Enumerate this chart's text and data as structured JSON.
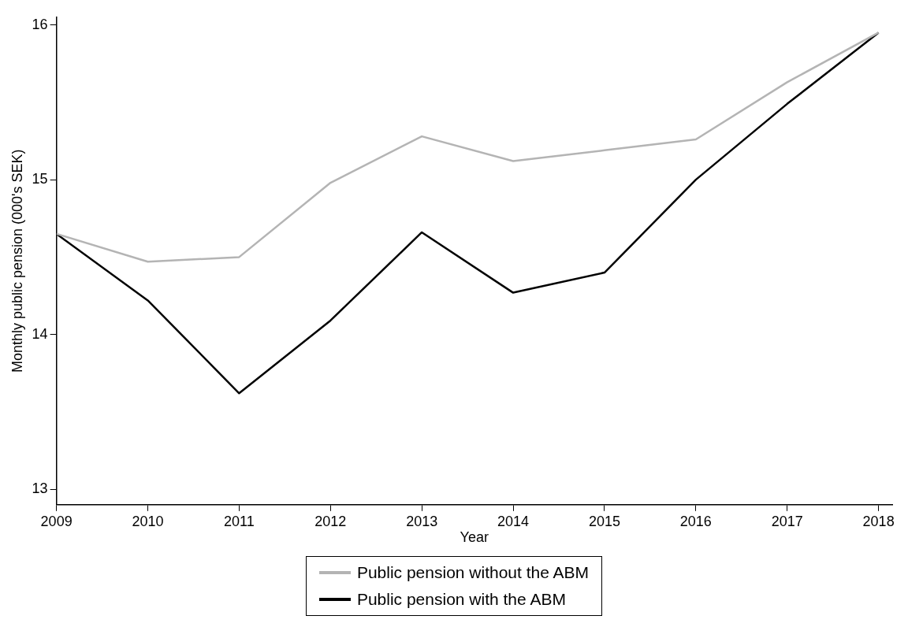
{
  "chart_data": {
    "type": "line",
    "xlabel": "Year",
    "ylabel": "Monthly public pension (000's SEK)",
    "x": [
      2009,
      2010,
      2011,
      2012,
      2013,
      2014,
      2015,
      2016,
      2017,
      2018
    ],
    "series": [
      {
        "name": "Public pension without the ABM",
        "color": "#b4b4b4",
        "values": [
          14.65,
          14.47,
          14.5,
          14.98,
          15.28,
          15.12,
          15.19,
          15.26,
          15.63,
          15.95
        ]
      },
      {
        "name": "Public pension with the ABM",
        "color": "#000000",
        "values": [
          14.65,
          14.22,
          13.62,
          14.09,
          14.66,
          14.27,
          14.4,
          15.0,
          15.49,
          15.95
        ]
      }
    ],
    "xlim": [
      2009,
      2018.15
    ],
    "xticks": [
      2009,
      2010,
      2011,
      2012,
      2013,
      2014,
      2015,
      2016,
      2017,
      2018
    ],
    "ylim": [
      12.9,
      16.05
    ],
    "yticks": [
      13,
      14,
      15,
      16
    ],
    "grid": false,
    "legend": "bottom",
    "marker": "none",
    "line_style": "solid"
  }
}
